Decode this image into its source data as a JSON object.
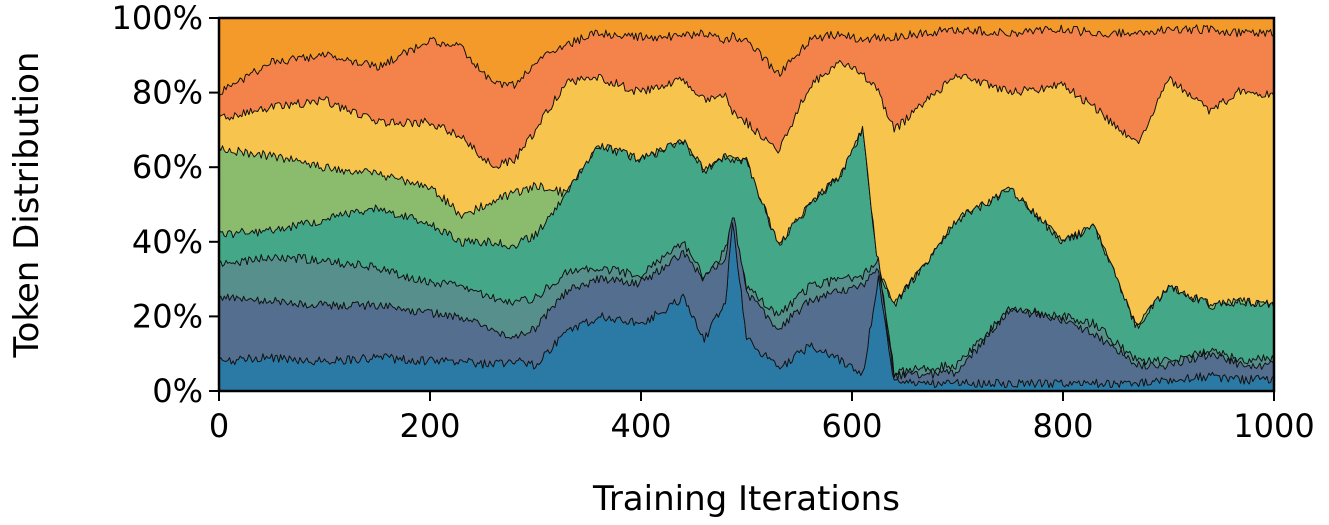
{
  "chart_data": {
    "type": "area",
    "stacked": true,
    "normalized": true,
    "title": "",
    "xlabel": "Training Iterations",
    "ylabel": "Token Distribution",
    "xlim": [
      0,
      1000
    ],
    "ylim": [
      0,
      100
    ],
    "x_ticks": [
      "0",
      "200",
      "400",
      "600",
      "800",
      "1000"
    ],
    "y_ticks": [
      "0%",
      "20%",
      "40%",
      "60%",
      "80%",
      "100%"
    ],
    "grid": false,
    "legend": "none",
    "x": [
      0,
      50,
      100,
      150,
      200,
      230,
      260,
      280,
      300,
      330,
      360,
      400,
      440,
      460,
      480,
      487,
      500,
      530,
      560,
      590,
      610,
      625,
      640,
      700,
      750,
      800,
      830,
      870,
      900,
      940,
      970,
      1000
    ],
    "boundaries_cumulative_percent": [
      {
        "color": "#2a7aa5",
        "values": [
          8,
          9,
          8,
          9,
          8,
          8,
          7,
          8,
          7,
          16,
          20,
          18,
          25,
          14,
          24,
          45,
          14,
          6,
          12,
          8,
          4,
          30,
          2,
          2,
          2,
          2,
          2,
          2,
          3,
          4,
          3,
          3
        ]
      },
      {
        "color": "#536e8e",
        "values": [
          25,
          24,
          23,
          23,
          21,
          20,
          16,
          15,
          17,
          27,
          30,
          29,
          37,
          30,
          36,
          48,
          26,
          17,
          24,
          27,
          28,
          33,
          4,
          5,
          22,
          19,
          15,
          7,
          7,
          10,
          7,
          7
        ]
      },
      {
        "color": "#568f8b",
        "values": [
          34,
          36,
          35,
          33,
          29,
          28,
          25,
          24,
          25,
          32,
          33,
          31,
          40,
          30,
          38,
          42,
          28,
          20,
          28,
          30,
          31,
          35,
          5,
          7,
          22,
          20,
          18,
          8,
          8,
          11,
          8,
          9
        ]
      },
      {
        "color": "#44a888",
        "values": [
          42,
          43,
          46,
          49,
          45,
          40,
          40,
          39,
          42,
          53,
          66,
          62,
          67,
          59,
          63,
          62,
          62,
          39,
          50,
          58,
          70,
          32,
          23,
          46,
          54,
          40,
          44,
          17,
          28,
          23,
          24,
          23
        ]
      },
      {
        "color": "#8bbb6c",
        "values": [
          65,
          63,
          60,
          58,
          55,
          47,
          51,
          53,
          55,
          53,
          66,
          62,
          67,
          59,
          63,
          62,
          62,
          39,
          50,
          58,
          70,
          32,
          23,
          46,
          54,
          40,
          44,
          17,
          28,
          23,
          24,
          23
        ]
      },
      {
        "color": "#f7c44e",
        "values": [
          73,
          76,
          78,
          72,
          72,
          68,
          60,
          62,
          70,
          83,
          84,
          80,
          84,
          78,
          80,
          75,
          72,
          64,
          82,
          88,
          85,
          80,
          70,
          85,
          80,
          82,
          76,
          66,
          84,
          75,
          81,
          79
        ]
      },
      {
        "color": "#f3834b",
        "values": [
          80,
          88,
          90,
          87,
          94,
          92,
          82,
          82,
          88,
          93,
          96,
          95,
          95,
          96,
          94,
          95,
          94,
          85,
          94,
          96,
          94,
          95,
          95,
          97,
          96,
          97,
          96,
          96,
          97,
          97,
          96,
          96
        ]
      },
      {
        "color": "#f39a2b",
        "values": [
          100,
          100,
          100,
          100,
          100,
          100,
          100,
          100,
          100,
          100,
          100,
          100,
          100,
          100,
          100,
          100,
          100,
          100,
          100,
          100,
          100,
          100,
          100,
          100,
          100,
          100,
          100,
          100,
          100,
          100,
          100,
          100
        ]
      }
    ]
  }
}
